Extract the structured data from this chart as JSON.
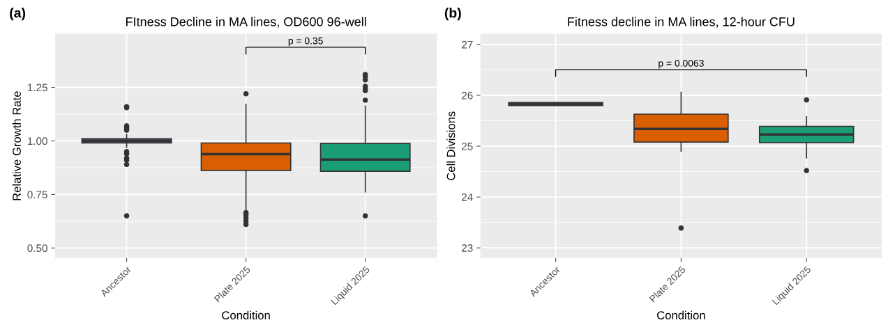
{
  "chart_data": [
    {
      "type": "box",
      "title": "FItness Decline in MA lines, OD600 96-well",
      "xlabel": "Condition",
      "ylabel": "Relative Growth Rate",
      "categories": [
        "Ancestor",
        "Plate 2025",
        "Liquid 2025"
      ],
      "colors": [
        "#4e4a6b",
        "#d95f02",
        "#1b9e77"
      ],
      "boxes": [
        {
          "low": 0.97,
          "q1": 0.99,
          "median": 1.0,
          "q3": 1.01,
          "high": 1.03,
          "outliers": [
            1.16,
            1.155,
            1.07,
            1.06,
            1.05,
            0.95,
            0.94,
            0.92,
            0.91,
            0.89,
            0.65
          ]
        },
        {
          "low": 0.68,
          "q1": 0.862,
          "median": 0.938,
          "q3": 0.99,
          "high": 1.17,
          "outliers": [
            1.22,
            0.665,
            0.655,
            0.64,
            0.625,
            0.61
          ]
        },
        {
          "low": 0.762,
          "q1": 0.858,
          "median": 0.913,
          "q3": 0.988,
          "high": 1.163,
          "outliers": [
            1.31,
            1.3,
            1.285,
            1.255,
            1.245,
            1.235,
            1.19,
            0.65
          ]
        }
      ],
      "ylim": [
        0.453,
        1.5
      ],
      "yticks": [
        {
          "value": 0.5,
          "label": "0.50"
        },
        0.75,
        {
          "value": 1.0,
          "label": "1.00"
        },
        1.25
      ],
      "grid": true,
      "annotations": [
        "(a)",
        "p = 0.35"
      ]
    },
    {
      "type": "box",
      "title": "Fitness decline in MA lines, 12-hour CFU",
      "xlabel": "Condition",
      "ylabel": "Cell Divisions",
      "categories": [
        "Ancestor",
        "Plate 2025",
        "Liquid 2025"
      ],
      "colors": [
        "#4e4a6b",
        "#d95f02",
        "#1b9e77"
      ],
      "boxes": [
        {
          "low": 25.8,
          "q1": 25.8,
          "median": 25.83,
          "q3": 25.86,
          "high": 25.86
        },
        {
          "low": 24.9,
          "q1": 25.08,
          "median": 25.34,
          "q3": 25.63,
          "high": 26.06,
          "outliers": [
            23.39
          ]
        },
        {
          "low": 24.77,
          "q1": 25.07,
          "median": 25.23,
          "q3": 25.39,
          "high": 25.58,
          "outliers": [
            25.91,
            24.52
          ]
        }
      ],
      "ylim": [
        22.8,
        27.21
      ],
      "yticks": [
        23,
        24,
        25,
        26,
        27
      ],
      "grid": true,
      "annotations": [
        "(b)",
        "p = 0.0063"
      ]
    }
  ]
}
